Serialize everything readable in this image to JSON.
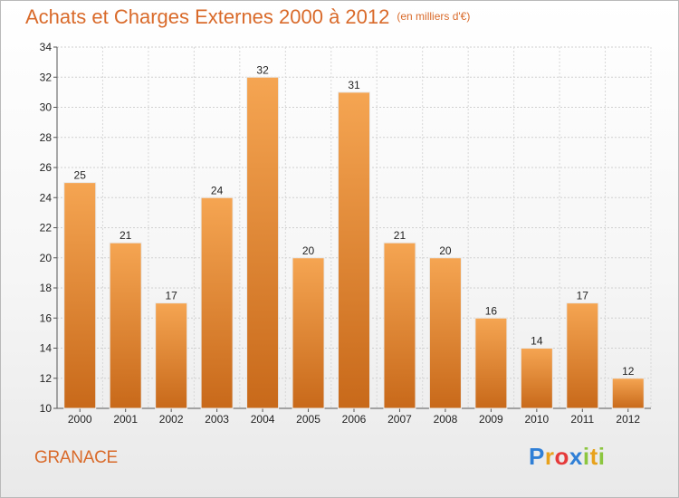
{
  "header": {
    "title": "Achats et Charges Externes 2000 à 2012",
    "unit": "(en milliers d'€)"
  },
  "footer": {
    "town": "GRANACE",
    "logo_letters": [
      "P",
      "r",
      "o",
      "x",
      "i",
      "t",
      "i"
    ]
  },
  "colors": {
    "accent": "#d96a2a",
    "bar_top": "#f5a552",
    "bar_bottom": "#c8691a"
  },
  "chart_data": {
    "type": "bar",
    "title": "Achats et Charges Externes 2000 à 2012",
    "subtitle": "(en milliers d'€)",
    "categories": [
      "2000",
      "2001",
      "2002",
      "2003",
      "2004",
      "2005",
      "2006",
      "2007",
      "2008",
      "2009",
      "2010",
      "2011",
      "2012"
    ],
    "values": [
      25,
      21,
      17,
      24,
      32,
      20,
      31,
      21,
      20,
      16,
      14,
      17,
      12
    ],
    "ylim": [
      10,
      34
    ],
    "yticks": [
      10,
      12,
      14,
      16,
      18,
      20,
      22,
      24,
      26,
      28,
      30,
      32,
      34
    ],
    "grid": true,
    "legend": "none"
  }
}
